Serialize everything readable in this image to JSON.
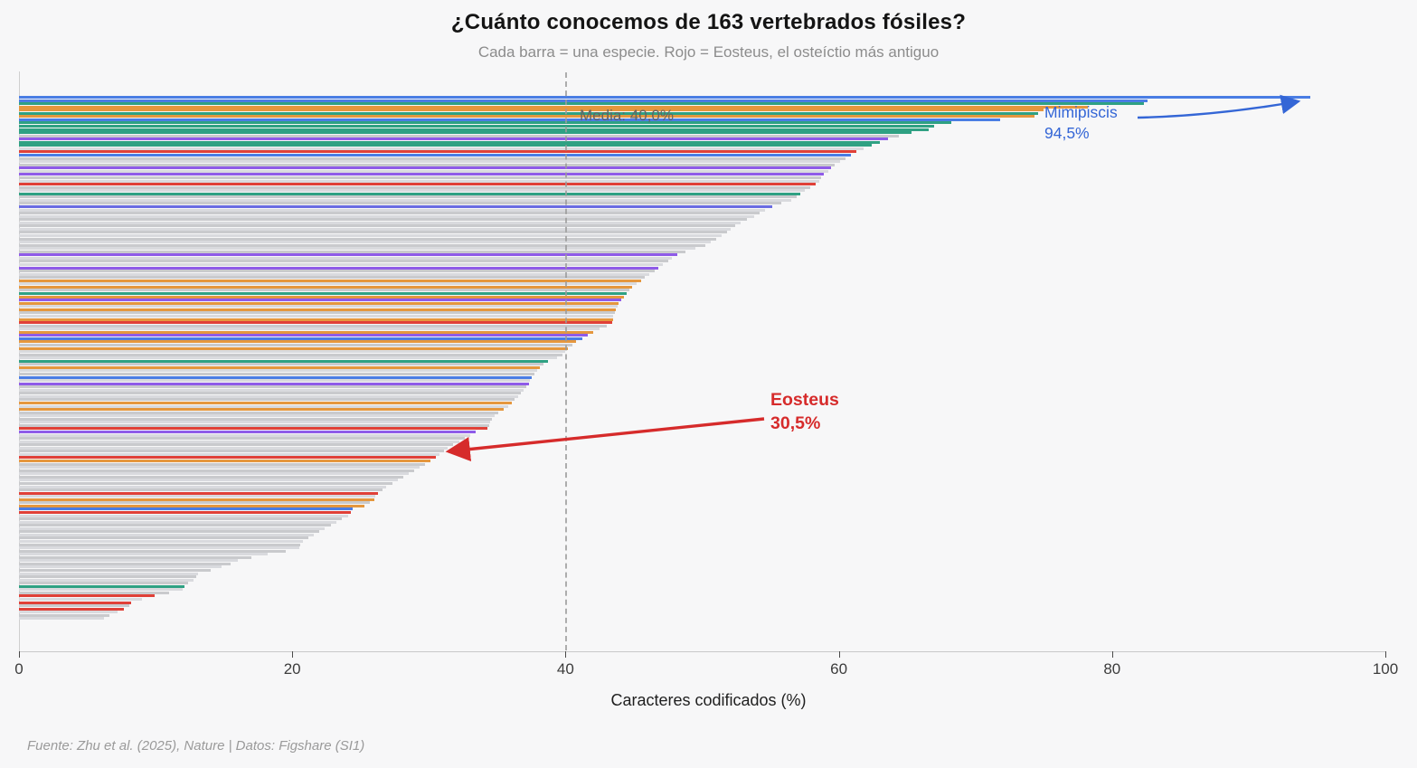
{
  "title": "¿Cuánto conocemos de 163 vertebrados fósiles?",
  "subtitle": "Cada barra = una especie. Rojo = Eosteus, el osteíctio más antiguo",
  "footer": "Fuente: Zhu et al. (2025), Nature | Datos: Figshare (SI1)",
  "axis": {
    "ticks": [
      0,
      20,
      40,
      60,
      80,
      100
    ],
    "xlim": [
      0,
      100
    ]
  },
  "annotations": {
    "media": {
      "label": "Media: 40,0%",
      "value": 40.0
    },
    "mimipiscis": {
      "name": "Mimipiscis",
      "value_label": "94,5%",
      "value": 94.5,
      "color": "#3466d6"
    },
    "eosteus": {
      "name": "Eosteus",
      "value_label": "30,5%",
      "value": 30.5,
      "color": "#d62b2b"
    }
  },
  "chart_data": {
    "type": "bar",
    "orientation": "horizontal",
    "title": "¿Cuánto conocemos de 163 vertebrados fósiles?",
    "subtitle": "Cada barra = una especie. Rojo = Eosteus, el osteíctio más antiguo",
    "xlabel": "Caracteres codificados (%)",
    "xlim": [
      0,
      100
    ],
    "xticks": [
      0,
      20,
      40,
      60,
      80,
      100
    ],
    "grid": false,
    "legend": "none",
    "n_species": 163,
    "mean": 40.0,
    "mimipiscis_index": 0,
    "eosteus_index": 112,
    "values": [
      94.5,
      82.6,
      82.3,
      78.2,
      75.0,
      74.6,
      74.3,
      71.8,
      68.2,
      67.0,
      66.6,
      65.3,
      64.4,
      63.6,
      63.0,
      62.4,
      61.8,
      61.3,
      60.9,
      60.5,
      60.1,
      59.7,
      59.4,
      59.2,
      58.9,
      58.7,
      58.6,
      58.3,
      57.9,
      57.5,
      57.2,
      56.9,
      56.5,
      55.8,
      55.1,
      54.6,
      54.2,
      53.8,
      53.3,
      52.8,
      52.4,
      52.1,
      51.8,
      51.4,
      51.0,
      50.6,
      50.2,
      49.5,
      48.8,
      48.2,
      47.8,
      47.5,
      47.1,
      46.8,
      46.5,
      46.1,
      45.8,
      45.5,
      45.2,
      44.9,
      44.7,
      44.5,
      44.3,
      44.1,
      43.9,
      43.8,
      43.7,
      43.6,
      43.5,
      43.45,
      43.4,
      43.0,
      42.5,
      42.0,
      41.6,
      41.2,
      40.8,
      40.5,
      40.2,
      40.0,
      39.8,
      39.4,
      38.7,
      38.4,
      38.1,
      37.9,
      37.7,
      37.5,
      37.4,
      37.3,
      37.1,
      36.9,
      36.7,
      36.5,
      36.3,
      36.1,
      35.8,
      35.5,
      35.1,
      34.8,
      34.6,
      34.5,
      34.4,
      34.3,
      33.4,
      33.0,
      32.6,
      32.2,
      31.8,
      31.4,
      31.1,
      30.8,
      30.5,
      30.1,
      29.7,
      29.3,
      28.9,
      28.5,
      28.1,
      27.7,
      27.3,
      26.9,
      26.6,
      26.3,
      26.1,
      26.0,
      25.7,
      25.3,
      24.4,
      24.3,
      24.1,
      23.6,
      23.2,
      22.8,
      22.4,
      22.0,
      21.6,
      21.2,
      20.8,
      20.6,
      20.5,
      19.5,
      18.2,
      17.0,
      16.0,
      15.5,
      14.8,
      14.0,
      13.1,
      13.0,
      12.8,
      12.4,
      12.1,
      12.0,
      11.0,
      9.9,
      9.0,
      8.2,
      8.1,
      7.7,
      7.2,
      6.6,
      6.2
    ],
    "colors": [
      "b",
      "b",
      "t",
      "o",
      "o",
      "t",
      "o",
      "b",
      "t",
      "t",
      "t",
      "t",
      "g",
      "p",
      "t",
      "t",
      "g",
      "r",
      "b",
      "g",
      "g",
      "g",
      "p",
      "g",
      "p",
      "g",
      "g",
      "r",
      "g",
      "g",
      "t",
      "g",
      "g",
      "g",
      "v",
      "g",
      "g",
      "g",
      "g",
      "g",
      "g",
      "g",
      "g",
      "g",
      "g",
      "g",
      "g",
      "g",
      "g",
      "p",
      "g",
      "g",
      "g",
      "p",
      "g",
      "g",
      "g",
      "o",
      "g",
      "o",
      "g",
      "t",
      "o",
      "p",
      "o",
      "g",
      "o",
      "g",
      "g",
      "o",
      "r",
      "g",
      "g",
      "o",
      "p",
      "b",
      "o",
      "g",
      "o",
      "g",
      "g",
      "g",
      "t",
      "g",
      "o",
      "g",
      "g",
      "b",
      "g",
      "p",
      "g",
      "g",
      "g",
      "g",
      "g",
      "o",
      "g",
      "o",
      "g",
      "g",
      "g",
      "g",
      "g",
      "r",
      "p",
      "g",
      "g",
      "g",
      "g",
      "g",
      "g",
      "g",
      "r",
      "o",
      "g",
      "g",
      "g",
      "g",
      "g",
      "g",
      "g",
      "g",
      "g",
      "r",
      "g",
      "o",
      "g",
      "o",
      "b",
      "r",
      "g",
      "g",
      "g",
      "g",
      "g",
      "g",
      "g",
      "g",
      "g",
      "g",
      "g",
      "g",
      "g",
      "g",
      "g",
      "g",
      "g",
      "g",
      "g",
      "g",
      "g",
      "g",
      "t",
      "g",
      "g",
      "r",
      "g",
      "r",
      "g",
      "r",
      "g",
      "g",
      "g"
    ],
    "color_map": {
      "b": "#4a7de4",
      "t": "#2fa183",
      "o": "#e5973e",
      "p": "#8f5be8",
      "r": "#e04038",
      "v": "#6a6ce2",
      "g": "#c9cacd",
      "g_alt": "#d9dade"
    }
  }
}
